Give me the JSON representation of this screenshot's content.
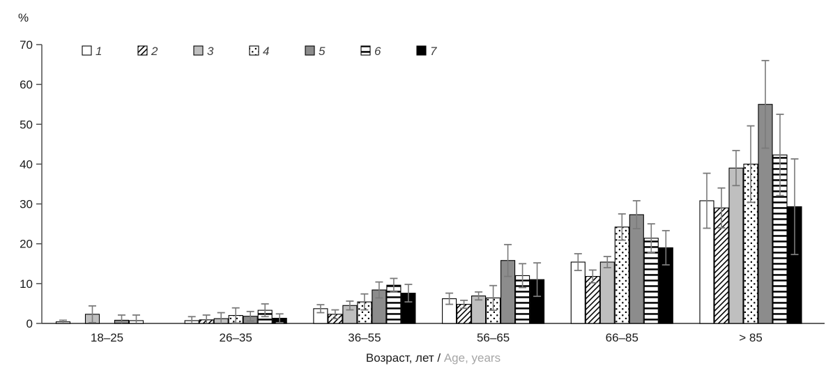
{
  "page": {
    "background": "#ffffff"
  },
  "chart_data": {
    "type": "bar",
    "title": "",
    "ylabel": "%",
    "xlabel_ru": "Возраст, лет / ",
    "xlabel_en": "Age, years",
    "ylim": [
      0,
      70
    ],
    "yticks": [
      0,
      10,
      20,
      30,
      40,
      50,
      60,
      70
    ],
    "grid": false,
    "legend_position": "top-left-inside",
    "error_bars": true,
    "categories": [
      "18–25",
      "26–35",
      "36–55",
      "56–65",
      "66–85",
      "> 85"
    ],
    "series": [
      {
        "name": "1",
        "pattern": "solid-white",
        "values": [
          0.4,
          0.7,
          3.7,
          6.2,
          15.4,
          30.8
        ],
        "errors": [
          0.4,
          1.0,
          1.0,
          1.4,
          2.1,
          6.9
        ]
      },
      {
        "name": "2",
        "pattern": "diagonal-hatch",
        "values": [
          0,
          0.9,
          2.3,
          4.8,
          11.8,
          29.0
        ],
        "errors": [
          0,
          1.2,
          1.1,
          1.0,
          1.6,
          5.0
        ]
      },
      {
        "name": "3",
        "pattern": "solid-lightgray",
        "values": [
          2.3,
          1.2,
          4.5,
          6.9,
          15.4,
          39.0
        ],
        "errors": [
          2.1,
          1.5,
          1.1,
          1.0,
          1.4,
          4.4
        ]
      },
      {
        "name": "4",
        "pattern": "dots",
        "values": [
          0,
          2.0,
          5.4,
          6.4,
          24.2,
          40.0
        ],
        "errors": [
          0,
          1.9,
          2.0,
          3.1,
          3.3,
          9.6
        ]
      },
      {
        "name": "5",
        "pattern": "solid-darkgray",
        "values": [
          0.8,
          1.8,
          8.4,
          15.8,
          27.3,
          55.0
        ],
        "errors": [
          1.3,
          1.2,
          2.0,
          4.0,
          3.5,
          11.0
        ]
      },
      {
        "name": "6",
        "pattern": "horizontal-lines",
        "values": [
          0.7,
          3.3,
          9.6,
          12.0,
          21.4,
          42.3
        ],
        "errors": [
          1.4,
          1.6,
          1.7,
          3.0,
          3.6,
          10.2
        ]
      },
      {
        "name": "7",
        "pattern": "solid-black",
        "values": [
          0,
          1.3,
          7.6,
          11.0,
          19.0,
          29.3
        ],
        "errors": [
          0,
          1.1,
          2.2,
          4.2,
          4.3,
          12.0
        ]
      }
    ],
    "colors": {
      "bar_stroke": "#000000",
      "light_gray": "#bfbfbf",
      "dark_gray": "#8c8c8c",
      "black": "#000000",
      "white": "#ffffff",
      "error_bar": "#7a7a7a",
      "axis": "#4d4d4d",
      "text": "#1a1a1a",
      "legend_text": "#3d3d3d",
      "xlabel_en_color": "#a6a6a6"
    }
  }
}
